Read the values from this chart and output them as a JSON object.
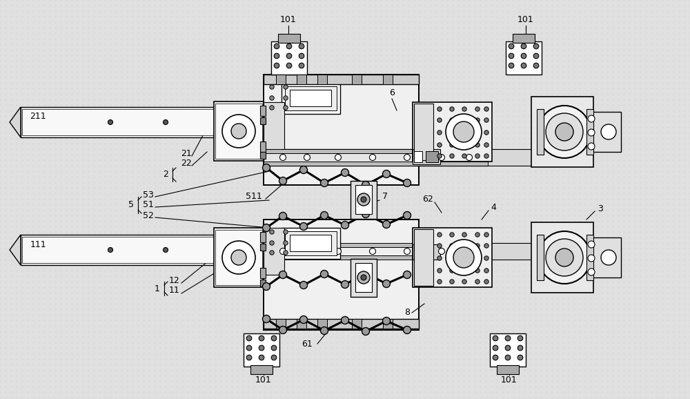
{
  "bg_color": "#e0e0e0",
  "line_color": "#1a1a1a",
  "fill_color": "#ffffff",
  "dark_fill": "#555555",
  "fig_width": 10.0,
  "fig_height": 5.78,
  "dpi": 100
}
